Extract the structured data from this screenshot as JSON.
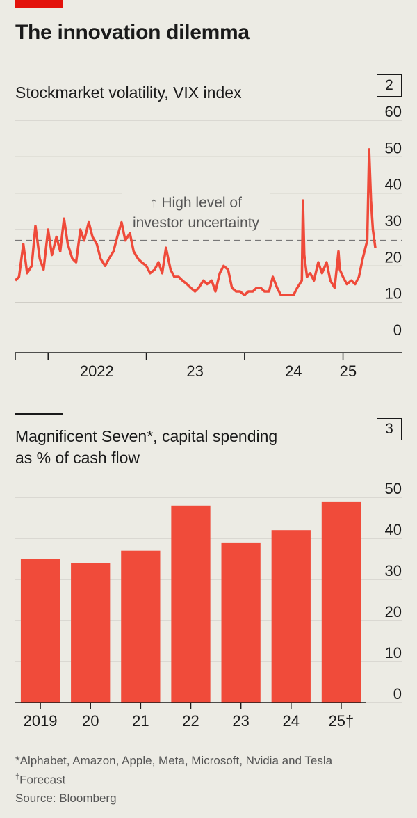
{
  "header": {
    "title": "The innovation dilemma"
  },
  "charts": [
    {
      "title": "Stockmarket volatility, VIX index",
      "number": "2",
      "annotation": [
        "↑ High level of",
        "investor uncertainty"
      ]
    },
    {
      "title": [
        "Magnificent Seven*, capital spending",
        "as % of cash flow"
      ],
      "number": "3"
    }
  ],
  "footnotes": {
    "note1": "*Alphabet, Amazon, Apple, Meta, Microsoft, Nvidia and Tesla",
    "note2_mark": "†",
    "note2": "Forecast",
    "source": "Source: Bloomberg"
  },
  "colors": {
    "series": "#ef4a3a",
    "bars": "#f04b3a",
    "accent": "#e3120b",
    "grid": "#cfcdc6"
  },
  "chart_data": [
    {
      "type": "line",
      "title": "Stockmarket volatility, VIX index",
      "ylim": [
        0,
        60
      ],
      "yticks": [
        0,
        10,
        20,
        30,
        40,
        50,
        60
      ],
      "xlim": [
        "2021-09-01",
        "2025-05-01"
      ],
      "xtick_labels": [
        {
          "label": "2022",
          "at": "2022-07-01"
        },
        {
          "label": "23",
          "at": "2023-07-01"
        },
        {
          "label": "24",
          "at": "2024-07-01"
        },
        {
          "label": "25",
          "at": "2025-01-20"
        }
      ],
      "year_separators": [
        "2022-01-01",
        "2023-01-01",
        "2024-01-01",
        "2025-01-01"
      ],
      "reference_line": {
        "y": 27,
        "style": "dashed"
      },
      "series": [
        {
          "x": [
            "2021-09-01",
            "2021-09-15",
            "2021-10-01",
            "2021-10-15",
            "2021-11-01",
            "2021-11-15",
            "2021-12-01",
            "2021-12-15",
            "2022-01-01",
            "2022-01-15",
            "2022-02-01",
            "2022-02-15",
            "2022-03-01",
            "2022-03-15",
            "2022-04-01",
            "2022-04-15",
            "2022-05-01",
            "2022-05-15",
            "2022-06-01",
            "2022-06-15",
            "2022-07-01",
            "2022-07-15",
            "2022-08-01",
            "2022-08-15",
            "2022-09-01",
            "2022-09-15",
            "2022-10-01",
            "2022-10-15",
            "2022-11-01",
            "2022-11-15",
            "2022-12-01",
            "2022-12-15",
            "2023-01-01",
            "2023-01-15",
            "2023-02-01",
            "2023-02-15",
            "2023-03-01",
            "2023-03-15",
            "2023-04-01",
            "2023-04-15",
            "2023-05-01",
            "2023-05-15",
            "2023-06-01",
            "2023-06-15",
            "2023-07-01",
            "2023-07-15",
            "2023-08-01",
            "2023-08-15",
            "2023-09-01",
            "2023-09-15",
            "2023-10-01",
            "2023-10-15",
            "2023-11-01",
            "2023-11-15",
            "2023-12-01",
            "2023-12-15",
            "2024-01-01",
            "2024-01-15",
            "2024-02-01",
            "2024-02-15",
            "2024-03-01",
            "2024-03-15",
            "2024-04-01",
            "2024-04-15",
            "2024-05-01",
            "2024-05-15",
            "2024-06-01",
            "2024-06-15",
            "2024-07-01",
            "2024-07-15",
            "2024-08-01",
            "2024-08-05",
            "2024-08-10",
            "2024-08-20",
            "2024-09-01",
            "2024-09-15",
            "2024-10-01",
            "2024-10-15",
            "2024-11-01",
            "2024-11-15",
            "2024-12-01",
            "2024-12-15",
            "2024-12-20",
            "2025-01-01",
            "2025-01-15",
            "2025-02-01",
            "2025-02-15",
            "2025-03-01",
            "2025-03-15",
            "2025-04-01",
            "2025-04-08",
            "2025-04-15",
            "2025-04-22",
            "2025-05-01"
          ],
          "y": [
            16,
            17,
            26,
            18,
            20,
            31,
            22,
            19,
            30,
            23,
            28,
            24,
            33,
            26,
            22,
            21,
            30,
            27,
            32,
            28,
            26,
            22,
            20,
            22,
            24,
            28,
            32,
            27,
            29,
            24,
            22,
            21,
            20,
            18,
            19,
            21,
            18,
            25,
            19,
            17,
            17,
            16,
            15,
            14,
            13,
            14,
            16,
            15,
            16,
            13,
            18,
            20,
            19,
            14,
            13,
            13,
            12,
            13,
            13,
            14,
            14,
            13,
            13,
            17,
            14,
            12,
            12,
            12,
            12,
            14,
            16,
            38,
            23,
            17,
            18,
            16,
            21,
            18,
            21,
            16,
            14,
            24,
            19,
            17,
            15,
            16,
            15,
            17,
            22,
            27,
            52,
            38,
            30,
            25
          ]
        }
      ]
    },
    {
      "type": "bar",
      "title": "Magnificent Seven*, capital spending as % of cash flow",
      "categories": [
        "2019",
        "20",
        "21",
        "22",
        "23",
        "24",
        "25†"
      ],
      "values": [
        35,
        34,
        37,
        48,
        39,
        42,
        49
      ],
      "ylim": [
        0,
        50
      ],
      "yticks": [
        0,
        10,
        20,
        30,
        40,
        50
      ]
    }
  ]
}
